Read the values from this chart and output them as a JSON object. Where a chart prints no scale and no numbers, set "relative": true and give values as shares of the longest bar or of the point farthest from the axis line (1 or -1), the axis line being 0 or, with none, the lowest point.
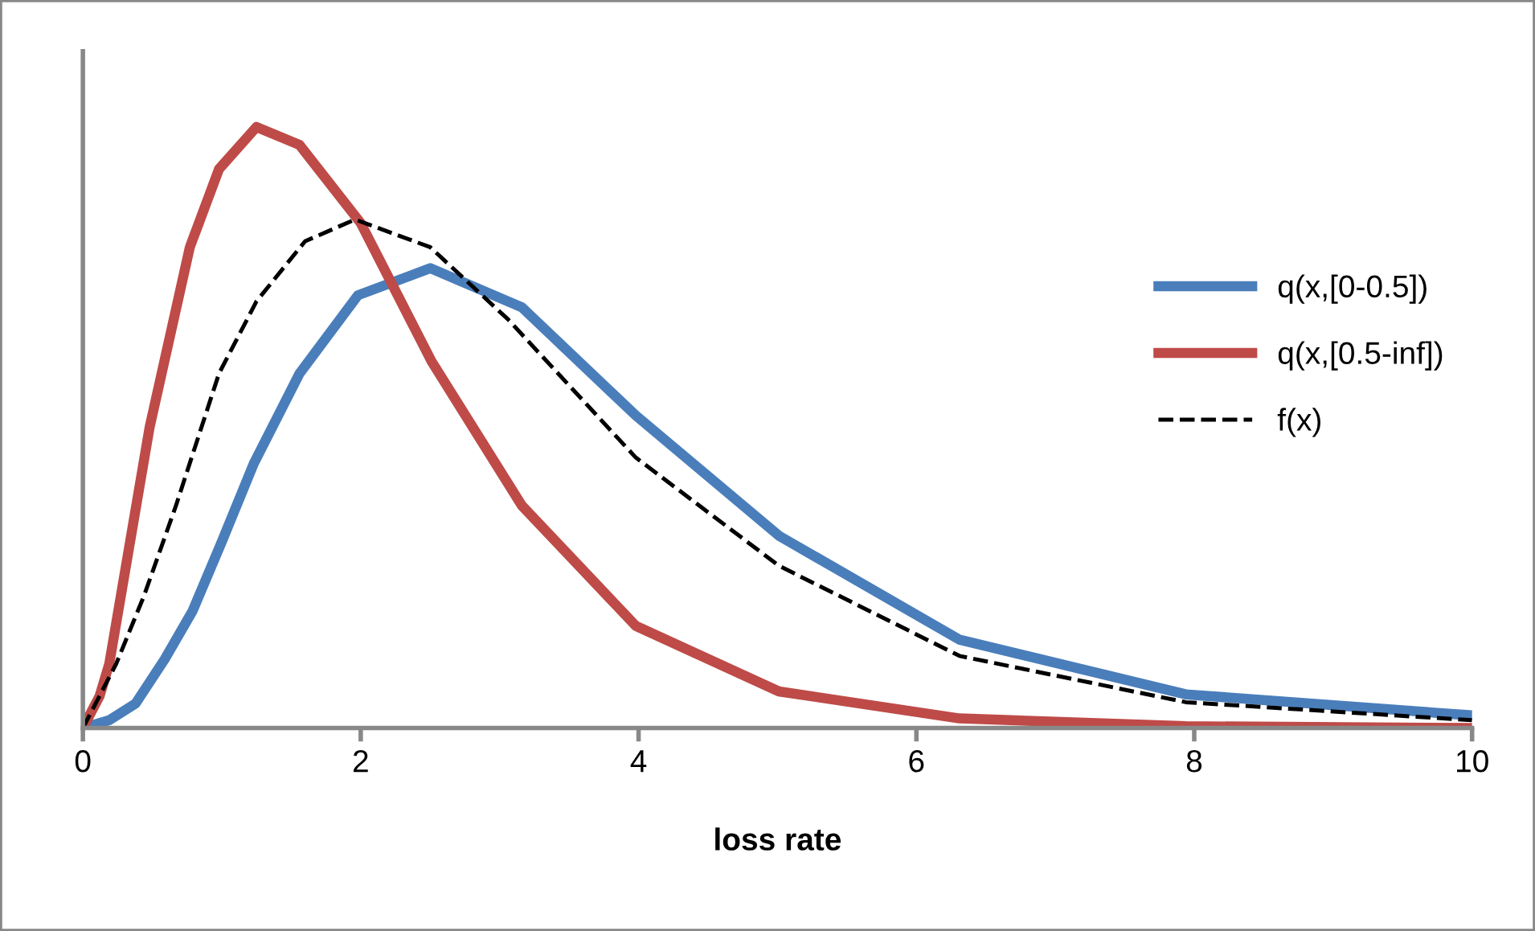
{
  "chart_data": {
    "type": "line",
    "xlabel": "loss rate",
    "relative": true,
    "xlim": [
      0,
      10
    ],
    "xticks": [
      0,
      2,
      4,
      6,
      8,
      10
    ],
    "grid": false,
    "legend": "right",
    "series": [
      {
        "name": "q(x,[0-0.5])",
        "color": "#4a7ebb",
        "line_style": "solid",
        "x": [
          0,
          0.19,
          0.38,
          0.59,
          0.79,
          1.0,
          1.23,
          1.56,
          1.98,
          2.5,
          3.16,
          3.98,
          5.01,
          6.31,
          7.94,
          10
        ],
        "values": [
          0,
          0.013,
          0.041,
          0.115,
          0.195,
          0.31,
          0.44,
          0.59,
          0.72,
          0.765,
          0.7,
          0.52,
          0.32,
          0.147,
          0.056,
          0.021
        ]
      },
      {
        "name": "q(x,[0.5-inf])",
        "color": "#be4b48",
        "line_style": "solid",
        "x": [
          0,
          0.12,
          0.19,
          0.48,
          0.77,
          0.98,
          1.25,
          1.56,
          2.0,
          2.51,
          3.16,
          3.98,
          5.01,
          6.31,
          7.94,
          10
        ],
        "values": [
          0,
          0.053,
          0.107,
          0.5,
          0.8,
          0.93,
          1.0,
          0.97,
          0.84,
          0.61,
          0.37,
          0.17,
          0.061,
          0.016,
          0.003,
          0
        ]
      },
      {
        "name": "f(x)",
        "color": "#000000",
        "line_style": "dashed",
        "x": [
          0,
          0.24,
          0.44,
          0.67,
          0.98,
          1.25,
          1.6,
          1.96,
          2.5,
          3.06,
          3.98,
          5.01,
          6.31,
          7.94,
          10
        ],
        "values": [
          0,
          0.107,
          0.22,
          0.37,
          0.59,
          0.71,
          0.81,
          0.846,
          0.8,
          0.68,
          0.45,
          0.27,
          0.12,
          0.043,
          0.013
        ]
      }
    ]
  }
}
